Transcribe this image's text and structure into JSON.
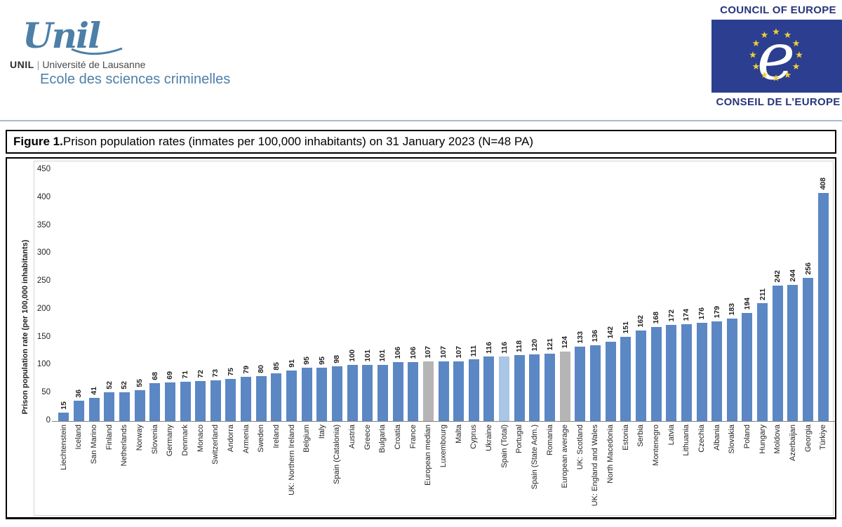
{
  "header": {
    "unil": {
      "script": "Unil",
      "acronym": "UNIL",
      "separator": "|",
      "university": "Université de Lausanne",
      "school": "Ecole des sciences criminelles"
    },
    "coe": {
      "english": "COUNCIL OF EUROPE",
      "french": "CONSEIL DE L’EUROPE"
    }
  },
  "figure": {
    "label": "Figure 1.",
    "title": " Prison population rates (inmates per 100,000 inhabitants) on 31 January 2023 (N=48 PA)"
  },
  "chart_data": {
    "type": "bar",
    "title": "Prison population rates (inmates per 100,000 inhabitants) on 31 January 2023 (N=48 PA)",
    "xlabel": "",
    "ylabel": "Prison population rate (per 100,000 inhabitants)",
    "ylim": [
      0,
      450
    ],
    "yticks": [
      0,
      50,
      100,
      150,
      200,
      250,
      300,
      350,
      400,
      450
    ],
    "grid": false,
    "legend_position": "none",
    "value_labels_shown": true,
    "categories": [
      "Liechtenstein",
      "Iceland",
      "San Marino",
      "Finland",
      "Netherlands",
      "Norway",
      "Slovenia",
      "Germany",
      "Denmark",
      "Monaco",
      "Switzerland",
      "Andorra",
      "Armenia",
      "Sweden",
      "Ireland",
      "UK: Northern Ireland",
      "Belgium",
      "Italy",
      "Spain (Catalonia)",
      "Austria",
      "Greece",
      "Bulgaria",
      "Croatia",
      "France",
      "European median",
      "Luxembourg",
      "Malta",
      "Cyprus",
      "Ukraine",
      "Spain (Total)",
      "Portugal",
      "Spain (State Adm.)",
      "Romania",
      "European average",
      "UK: Scotland",
      "UK: England and Wales",
      "North Macedonia",
      "Estonia",
      "Serbia",
      "Montenegro",
      "Latvia",
      "Lithuania",
      "Czechia",
      "Albania",
      "Slovakia",
      "Poland",
      "Hungary",
      "Moldova",
      "Azerbaijan",
      "Georgia",
      "Türkiye"
    ],
    "values": [
      15,
      36,
      41,
      52,
      52,
      55,
      68,
      69,
      71,
      72,
      73,
      75,
      79,
      80,
      85,
      91,
      95,
      95,
      98,
      100,
      101,
      101,
      106,
      106,
      107,
      107,
      107,
      111,
      116,
      116,
      118,
      120,
      121,
      124,
      133,
      136,
      142,
      151,
      162,
      168,
      172,
      174,
      176,
      179,
      183,
      194,
      211,
      242,
      244,
      256,
      408
    ],
    "special_bars": {
      "reference_gray": [
        "European median",
        "European average"
      ],
      "highlight_light_blue": [
        "Spain (Total)"
      ]
    },
    "colors": {
      "default_bar": "#5b87c5",
      "reference_bar": "#b5b5b5",
      "highlight_bar": "#a9c6e6",
      "axis_line": "#808080",
      "coe_blue": "#2b3e8f",
      "coe_star": "#f0d035",
      "unil_blue": "#4d7fa7",
      "divider": "#a7bdd3"
    }
  }
}
